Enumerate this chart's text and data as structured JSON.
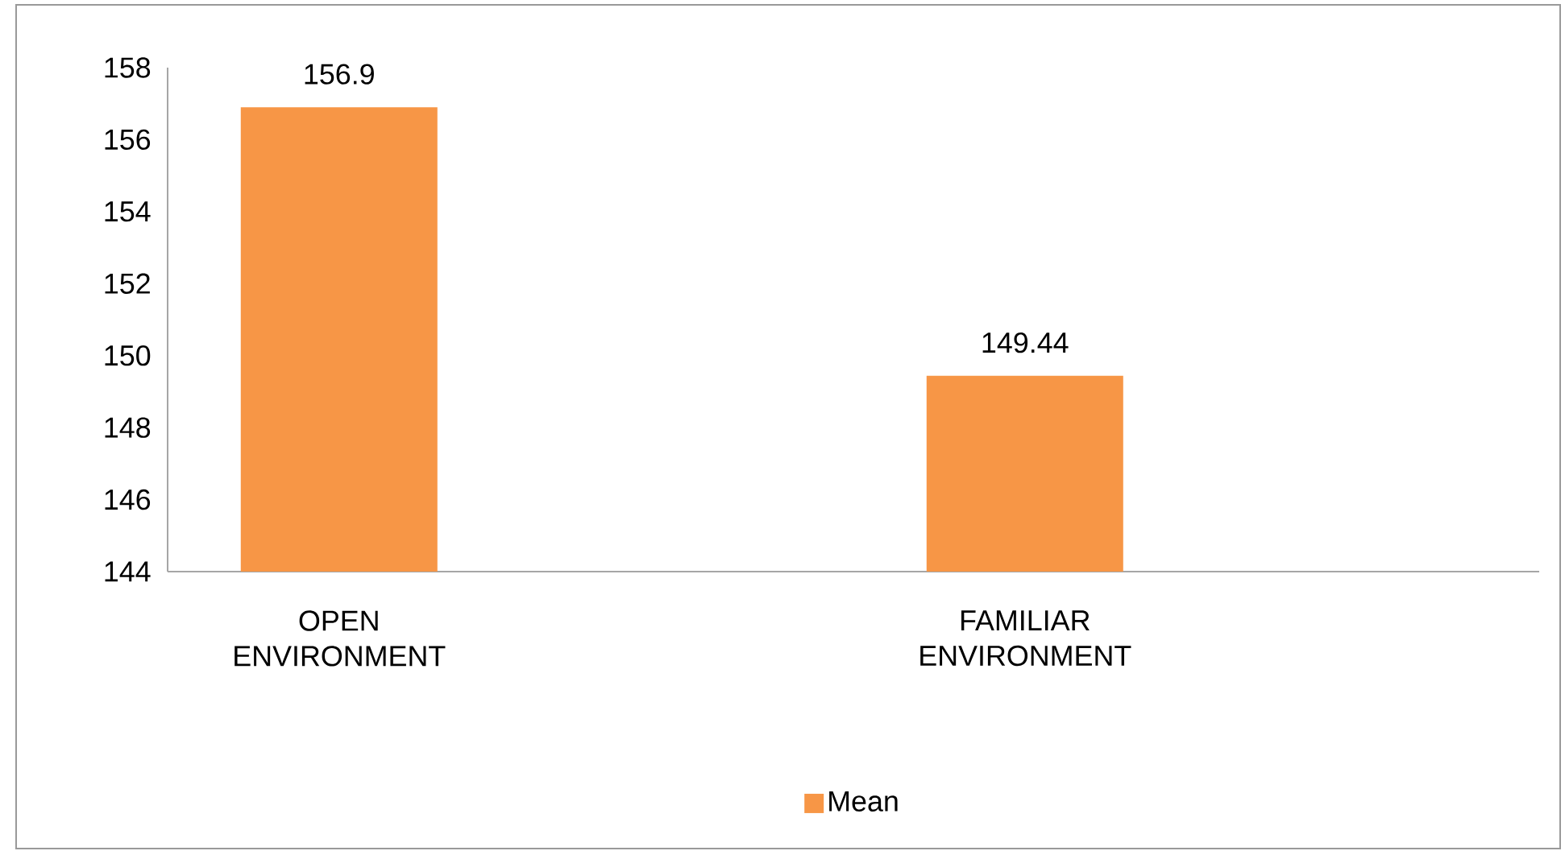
{
  "chart_data": {
    "type": "bar",
    "categories": [
      "OPEN ENVIRONMENT",
      "FAMILIAR ENVIRONMENT"
    ],
    "series": [
      {
        "name": "Mean",
        "color": "#f79646",
        "values": [
          156.9,
          149.44
        ]
      }
    ],
    "ylim": [
      144,
      158
    ],
    "yticks": [
      144,
      146,
      148,
      150,
      152,
      154,
      156,
      158
    ],
    "data_labels": true,
    "grid": false,
    "legend": "bottom"
  }
}
